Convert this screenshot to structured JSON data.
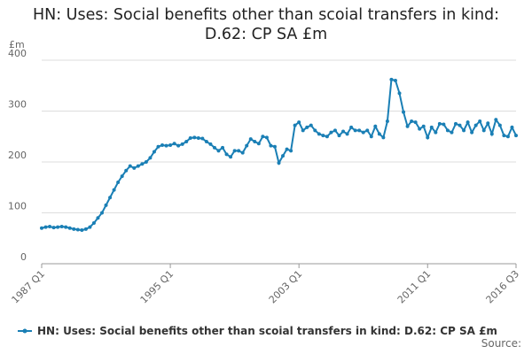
{
  "chart_data": {
    "type": "line",
    "title": "HN: Uses: Social benefits other than scoial transfers in kind: D.62: CP SA £m",
    "y_label": "£m",
    "source": "Source:",
    "categories": [
      "1987 Q1",
      null,
      null,
      null,
      null,
      null,
      null,
      null,
      null,
      null,
      null,
      null,
      null,
      null,
      null,
      null,
      null,
      null,
      null,
      null,
      null,
      null,
      null,
      null,
      null,
      null,
      null,
      null,
      null,
      null,
      null,
      null,
      "1995 Q1",
      null,
      null,
      null,
      null,
      null,
      null,
      null,
      null,
      null,
      null,
      null,
      null,
      null,
      null,
      null,
      null,
      null,
      null,
      null,
      null,
      null,
      null,
      null,
      null,
      null,
      null,
      null,
      null,
      null,
      null,
      null,
      "2003 Q1",
      null,
      null,
      null,
      null,
      null,
      null,
      null,
      null,
      null,
      null,
      null,
      null,
      null,
      null,
      null,
      null,
      null,
      null,
      null,
      null,
      null,
      null,
      null,
      null,
      null,
      null,
      null,
      null,
      null,
      null,
      null,
      "2011 Q1",
      null,
      null,
      null,
      null,
      null,
      null,
      null,
      null,
      null,
      null,
      null,
      null,
      null,
      null,
      null,
      null,
      null,
      null,
      null,
      null,
      null,
      "2016 Q3"
    ],
    "series": [
      {
        "name": "HN: Uses: Social benefits other than scoial transfers in kind: D.62: CP SA £m",
        "color": "#1a7fb5",
        "values": [
          70,
          72,
          73,
          71,
          72,
          73,
          72,
          70,
          68,
          67,
          66,
          68,
          72,
          80,
          90,
          100,
          115,
          130,
          145,
          160,
          172,
          183,
          192,
          188,
          192,
          196,
          200,
          208,
          220,
          230,
          233,
          232,
          233,
          236,
          232,
          235,
          240,
          247,
          248,
          247,
          246,
          240,
          235,
          228,
          222,
          228,
          215,
          210,
          222,
          222,
          218,
          232,
          245,
          240,
          236,
          250,
          248,
          232,
          230,
          198,
          212,
          225,
          222,
          272,
          278,
          262,
          268,
          272,
          262,
          255,
          252,
          250,
          258,
          262,
          252,
          260,
          255,
          268,
          262,
          262,
          258,
          262,
          250,
          270,
          255,
          248,
          280,
          362,
          360,
          335,
          298,
          270,
          280,
          278,
          265,
          270,
          248,
          268,
          258,
          275,
          274,
          262,
          258,
          275,
          272,
          262,
          278,
          258,
          272,
          280,
          262,
          276,
          255,
          283,
          272,
          252,
          250,
          268,
          252
        ]
      }
    ],
    "ylim": [
      0,
      400
    ],
    "yticks": [
      0,
      100,
      200,
      300,
      400
    ],
    "grid": true
  }
}
